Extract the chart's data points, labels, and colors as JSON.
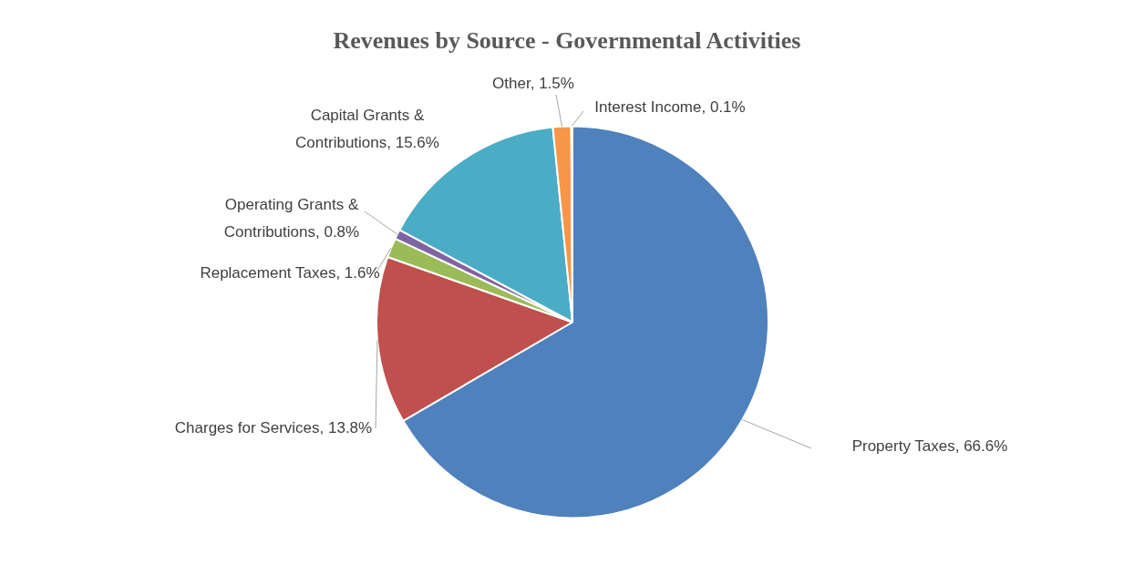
{
  "chart_data": {
    "type": "pie",
    "title": "Revenues by Source - Governmental Activities",
    "categories": [
      "Property Taxes",
      "Charges for Services",
      "Replacement Taxes",
      "Operating Grants & Contributions",
      "Capital Grants & Contributions",
      "Other",
      "Interest Income"
    ],
    "values": [
      66.6,
      13.8,
      1.6,
      0.8,
      15.6,
      1.5,
      0.1
    ],
    "value_labels": [
      "66.6%",
      "13.8%",
      "1.6%",
      "0.8%",
      "15.6%",
      "1.5%",
      "0.1%"
    ],
    "colors": [
      "#4f81bd",
      "#c0504d",
      "#9bbb59",
      "#8064a2",
      "#4bacc6",
      "#f79646",
      "#2c4d75"
    ],
    "legend": false
  }
}
